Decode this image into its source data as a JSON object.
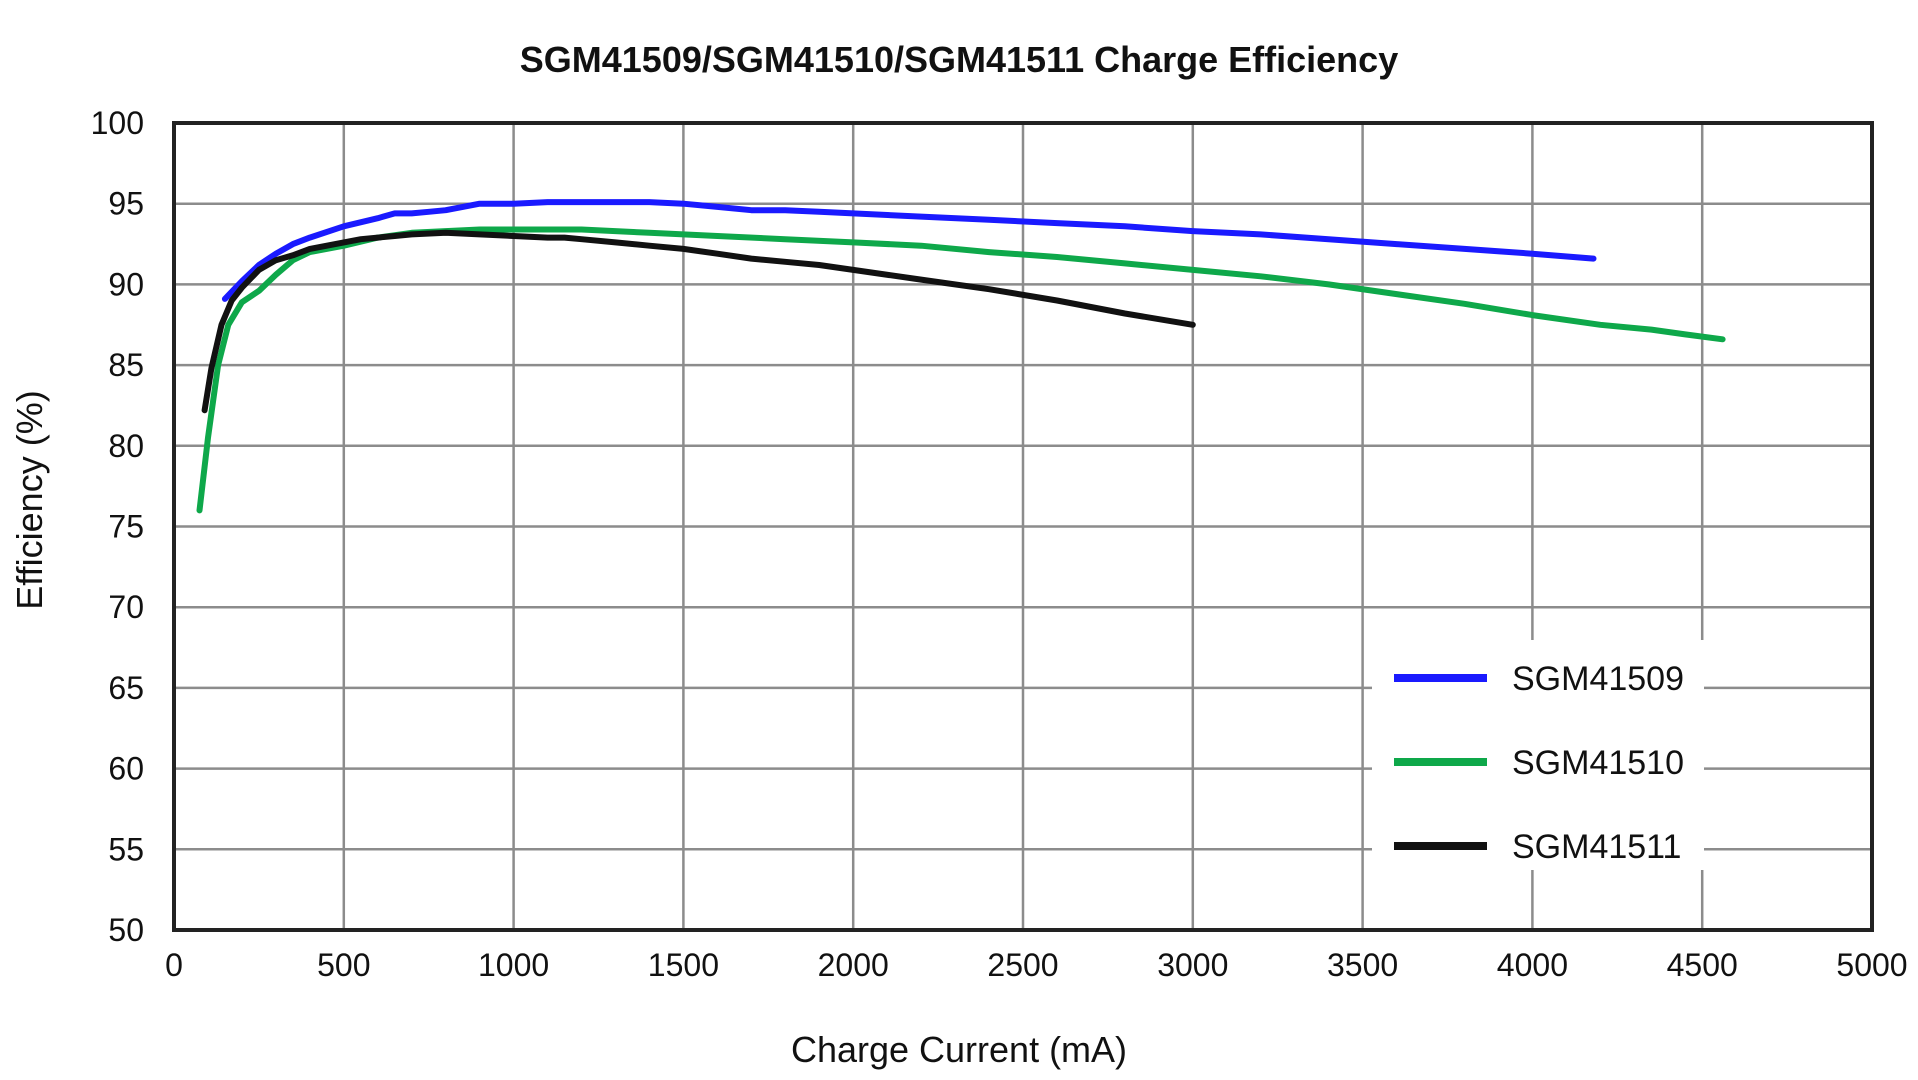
{
  "chart_data": {
    "type": "line",
    "title": "SGM41509/SGM41510/SGM41511 Charge Efficiency",
    "xlabel": "Charge Current (mA)",
    "ylabel": "Efficiency (%)",
    "xlim": [
      0,
      5000
    ],
    "ylim": [
      50,
      100
    ],
    "xticks": [
      0,
      500,
      1000,
      1500,
      2000,
      2500,
      3000,
      3500,
      4000,
      4500,
      5000
    ],
    "yticks": [
      50,
      55,
      60,
      65,
      70,
      75,
      80,
      85,
      90,
      95,
      100
    ],
    "grid": true,
    "legend_position": "bottom-right",
    "series": [
      {
        "name": "SGM41509",
        "color": "#1a1aff",
        "x": [
          150,
          200,
          250,
          300,
          350,
          400,
          500,
          600,
          650,
          700,
          750,
          800,
          850,
          900,
          1000,
          1100,
          1200,
          1300,
          1400,
          1500,
          1600,
          1700,
          1800,
          1900,
          2000,
          2200,
          2400,
          2600,
          2800,
          3000,
          3200,
          3400,
          3600,
          3800,
          4000,
          4180
        ],
        "y": [
          89.1,
          90.2,
          91.2,
          91.9,
          92.5,
          92.9,
          93.6,
          94.1,
          94.4,
          94.4,
          94.5,
          94.6,
          94.8,
          95.0,
          95.0,
          95.1,
          95.1,
          95.1,
          95.1,
          95.0,
          94.8,
          94.6,
          94.6,
          94.5,
          94.4,
          94.2,
          94.0,
          93.8,
          93.6,
          93.3,
          93.1,
          92.8,
          92.5,
          92.2,
          91.9,
          91.6
        ]
      },
      {
        "name": "SGM41510",
        "color": "#0ea84a",
        "x": [
          75,
          100,
          130,
          160,
          200,
          250,
          300,
          350,
          400,
          500,
          600,
          700,
          800,
          900,
          1000,
          1200,
          1400,
          1600,
          1800,
          2000,
          2200,
          2400,
          2600,
          2800,
          3000,
          3200,
          3400,
          3600,
          3800,
          4000,
          4200,
          4350,
          4450,
          4560
        ],
        "y": [
          76.0,
          80.5,
          85.0,
          87.5,
          88.9,
          89.6,
          90.6,
          91.5,
          92.0,
          92.4,
          92.9,
          93.2,
          93.3,
          93.4,
          93.4,
          93.4,
          93.2,
          93.0,
          92.8,
          92.6,
          92.4,
          92.0,
          91.7,
          91.3,
          90.9,
          90.5,
          90.0,
          89.4,
          88.8,
          88.1,
          87.5,
          87.2,
          86.9,
          86.6
        ]
      },
      {
        "name": "SGM41511",
        "color": "#111111",
        "x": [
          90,
          110,
          140,
          170,
          200,
          250,
          300,
          350,
          400,
          450,
          500,
          550,
          600,
          650,
          700,
          800,
          900,
          1000,
          1100,
          1150,
          1200,
          1300,
          1400,
          1500,
          1600,
          1700,
          1800,
          1900,
          2000,
          2200,
          2400,
          2600,
          2800,
          3000
        ],
        "y": [
          82.2,
          84.8,
          87.5,
          89.0,
          89.8,
          90.9,
          91.5,
          91.8,
          92.2,
          92.4,
          92.6,
          92.8,
          92.9,
          93.0,
          93.1,
          93.2,
          93.1,
          93.0,
          92.9,
          92.9,
          92.8,
          92.6,
          92.4,
          92.2,
          91.9,
          91.6,
          91.4,
          91.2,
          90.9,
          90.3,
          89.7,
          89.0,
          88.2,
          87.5
        ]
      }
    ]
  }
}
